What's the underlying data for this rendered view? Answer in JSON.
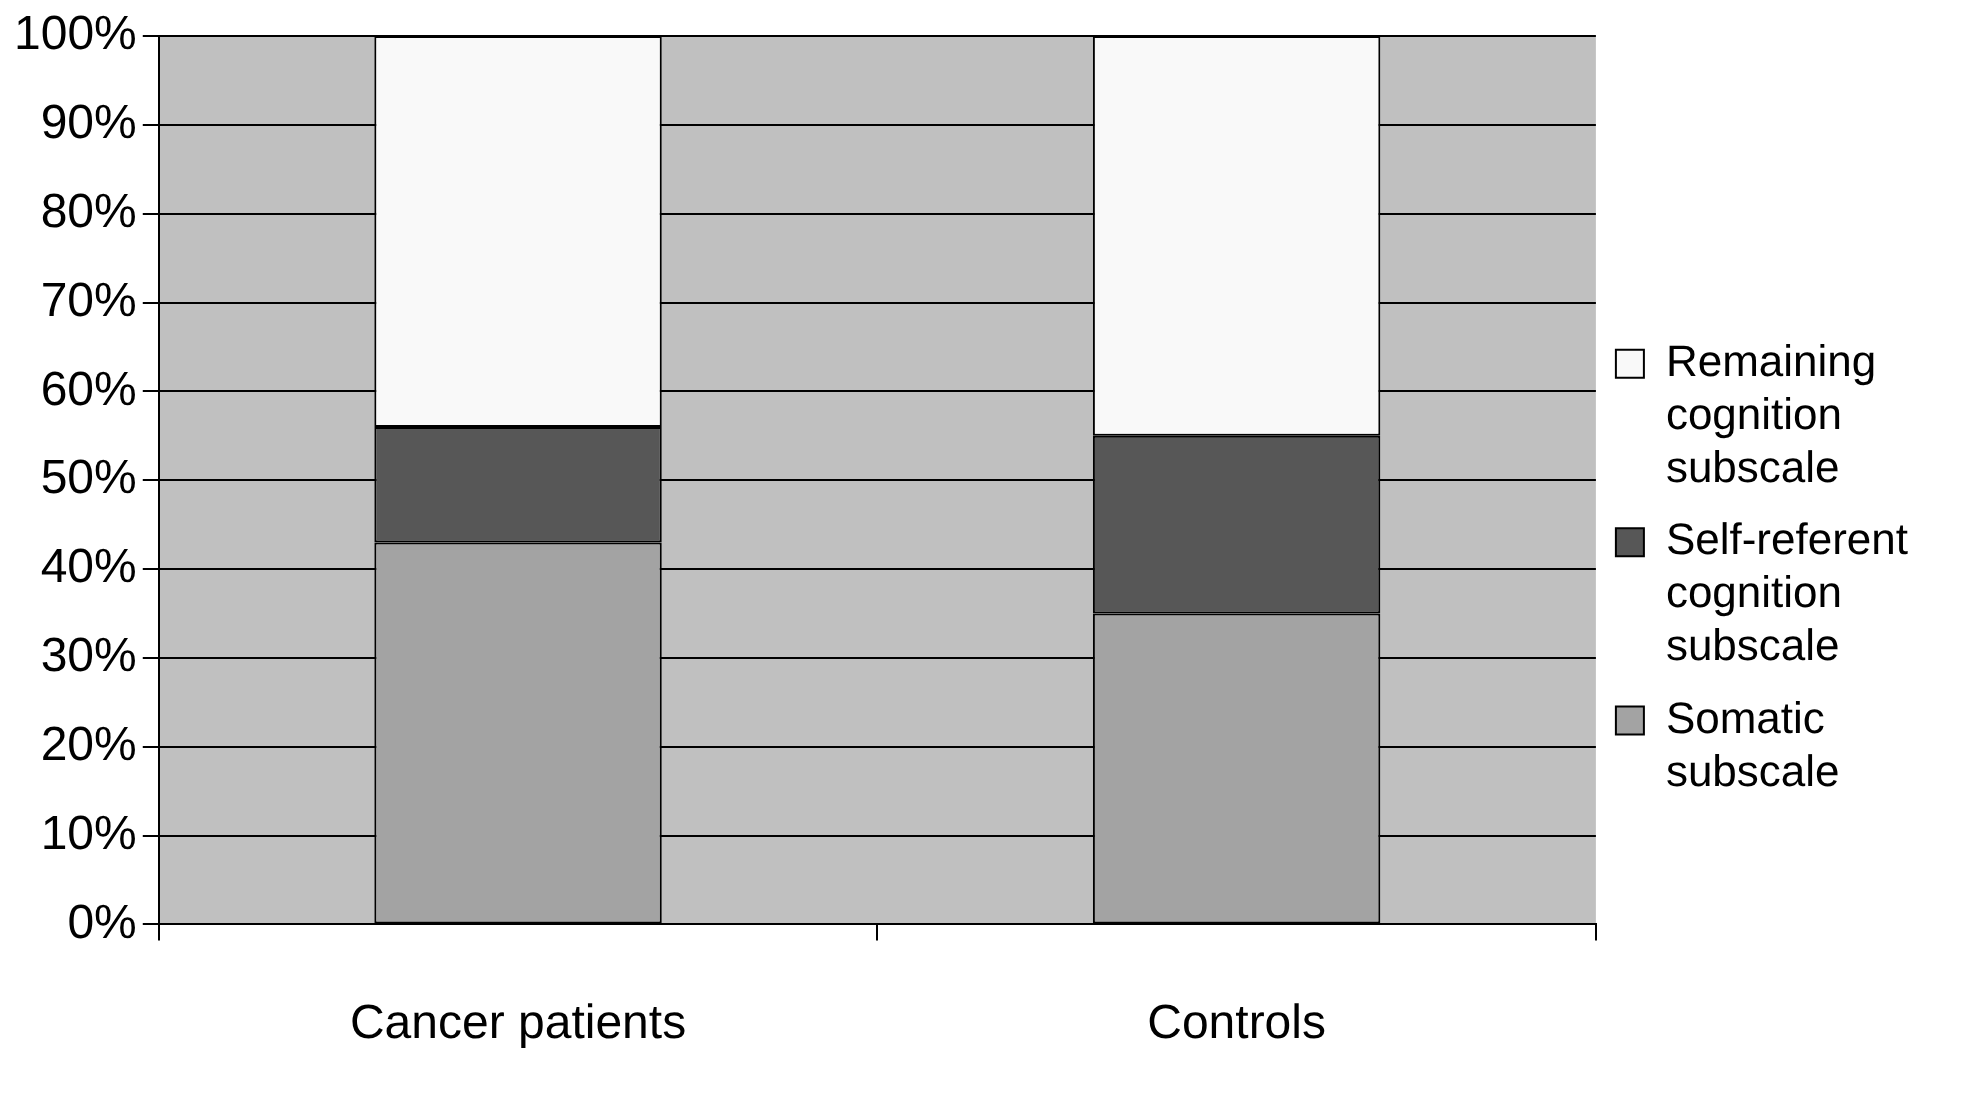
{
  "chart_data": {
    "type": "bar",
    "stacked": true,
    "categories": [
      "Cancer patients",
      "Controls"
    ],
    "series": [
      {
        "name": "Somatic subscale",
        "color": "#a3a3a3",
        "values": [
          43,
          35
        ]
      },
      {
        "name": "Self-referent cognition subscale",
        "color": "#575757",
        "values": [
          13,
          20
        ]
      },
      {
        "name": "Remaining cognition subscale",
        "color": "#f9f9f9",
        "values": [
          44,
          45
        ]
      }
    ],
    "ylim": [
      0,
      100
    ],
    "yticks": [
      {
        "value": 0,
        "label": "0%"
      },
      {
        "value": 10,
        "label": "10%"
      },
      {
        "value": 20,
        "label": "20%"
      },
      {
        "value": 30,
        "label": "30%"
      },
      {
        "value": 40,
        "label": "40%"
      },
      {
        "value": 50,
        "label": "50%"
      },
      {
        "value": 60,
        "label": "60%"
      },
      {
        "value": 70,
        "label": "70%"
      },
      {
        "value": 80,
        "label": "80%"
      },
      {
        "value": 90,
        "label": "90%"
      },
      {
        "value": 100,
        "label": "100%"
      }
    ],
    "grid": "y",
    "legend": "right"
  }
}
